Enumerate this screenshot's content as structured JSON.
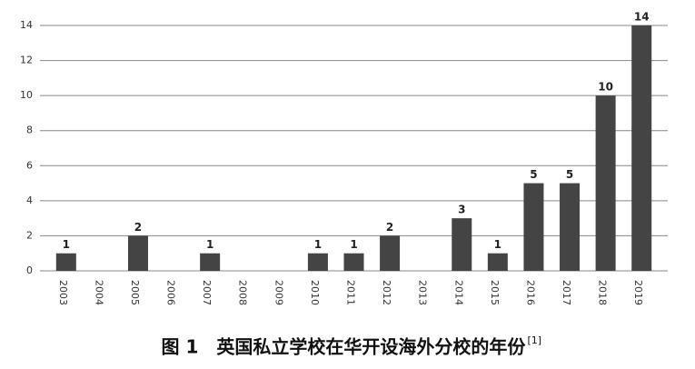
{
  "chart_data": {
    "type": "bar",
    "title": "图 1　英国私立学校在华开设海外分校的年份",
    "title_ref": "[1]",
    "categories": [
      "2003",
      "2004",
      "2005",
      "2006",
      "2007",
      "2008",
      "2009",
      "2010",
      "2011",
      "2012",
      "2013",
      "2014",
      "2015",
      "2016",
      "2017",
      "2018",
      "2019"
    ],
    "values": [
      1,
      0,
      2,
      0,
      1,
      0,
      0,
      1,
      1,
      2,
      0,
      3,
      1,
      5,
      5,
      10,
      14
    ],
    "value_labels": [
      "1",
      null,
      "2",
      null,
      "1",
      null,
      null,
      "1",
      "1",
      "2",
      null,
      "3",
      "1",
      "5",
      "5",
      "10",
      "14"
    ],
    "color": "#444444",
    "ylim": [
      0,
      14
    ],
    "yticks": [
      0,
      2,
      4,
      6,
      8,
      10,
      12,
      14
    ],
    "grid": true
  }
}
